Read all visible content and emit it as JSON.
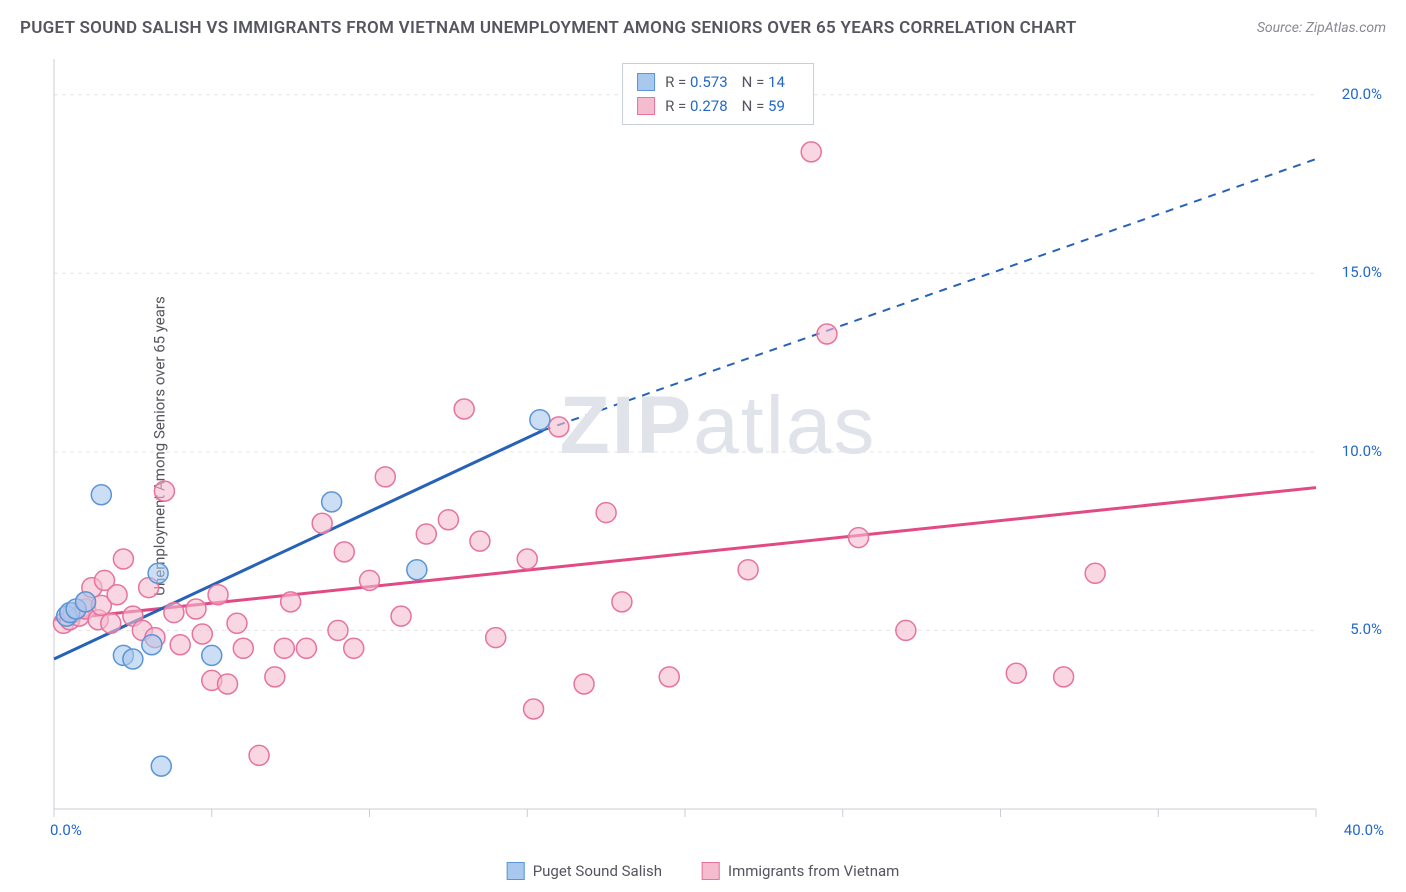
{
  "header": {
    "title": "PUGET SOUND SALISH VS IMMIGRANTS FROM VIETNAM UNEMPLOYMENT AMONG SENIORS OVER 65 YEARS CORRELATION CHART",
    "source": "Source: ZipAtlas.com"
  },
  "chart": {
    "type": "scatter",
    "y_axis_title": "Unemployment Among Seniors over 65 years",
    "watermark": "ZIPatlas",
    "background_color": "#ffffff",
    "grid_color": "#e5e5e5",
    "axis_color": "#c8cdd6",
    "tick_color": "#c8cdd6",
    "label_color": "#2268c9",
    "title_color": "#555560",
    "xlim": [
      0,
      40
    ],
    "ylim": [
      0,
      21
    ],
    "x_ticks": [
      0,
      5,
      10,
      15,
      20,
      25,
      30,
      35,
      40
    ],
    "x_tick_labels": {
      "0": "0.0%",
      "40": "40.0%"
    },
    "y_gridlines": [
      5,
      10,
      15,
      20
    ],
    "y_tick_labels": {
      "5": "5.0%",
      "10": "10.0%",
      "15": "15.0%",
      "20": "20.0%"
    },
    "series": [
      {
        "name": "Puget Sound Salish",
        "fill": "#a8c8ed",
        "stroke": "#5a95d8",
        "line_color": "#2662b8",
        "R": "0.573",
        "N": "14",
        "marker_radius": 10,
        "trend": {
          "x1": 0,
          "y1": 4.2,
          "x2": 15.5,
          "y2": 10.6,
          "dash_x2": 40,
          "dash_y2": 18.2
        },
        "points": [
          [
            0.4,
            5.4
          ],
          [
            0.5,
            5.5
          ],
          [
            0.7,
            5.6
          ],
          [
            1.0,
            5.8
          ],
          [
            1.5,
            8.8
          ],
          [
            2.2,
            4.3
          ],
          [
            2.5,
            4.2
          ],
          [
            3.1,
            4.6
          ],
          [
            3.3,
            6.6
          ],
          [
            5.0,
            4.3
          ],
          [
            8.8,
            8.6
          ],
          [
            11.5,
            6.7
          ],
          [
            15.4,
            10.9
          ],
          [
            3.4,
            1.2
          ]
        ]
      },
      {
        "name": "Immigrants from Vietnam",
        "fill": "#f5bccf",
        "stroke": "#e7739e",
        "line_color": "#e14a82",
        "R": "0.278",
        "N": "59",
        "marker_radius": 10,
        "trend": {
          "x1": 0,
          "y1": 5.3,
          "x2": 40,
          "y2": 9.0
        },
        "points": [
          [
            0.3,
            5.2
          ],
          [
            0.5,
            5.3
          ],
          [
            0.6,
            5.5
          ],
          [
            0.8,
            5.4
          ],
          [
            1.0,
            5.6
          ],
          [
            1.0,
            5.8
          ],
          [
            1.2,
            6.2
          ],
          [
            1.4,
            5.3
          ],
          [
            1.5,
            5.7
          ],
          [
            1.6,
            6.4
          ],
          [
            1.8,
            5.2
          ],
          [
            2.0,
            6.0
          ],
          [
            2.2,
            7.0
          ],
          [
            2.5,
            5.4
          ],
          [
            2.8,
            5.0
          ],
          [
            3.0,
            6.2
          ],
          [
            3.2,
            4.8
          ],
          [
            3.5,
            8.9
          ],
          [
            3.8,
            5.5
          ],
          [
            4.0,
            4.6
          ],
          [
            4.5,
            5.6
          ],
          [
            4.7,
            4.9
          ],
          [
            5.0,
            3.6
          ],
          [
            5.2,
            6.0
          ],
          [
            5.5,
            3.5
          ],
          [
            5.8,
            5.2
          ],
          [
            6.0,
            4.5
          ],
          [
            6.5,
            1.5
          ],
          [
            7.0,
            3.7
          ],
          [
            7.3,
            4.5
          ],
          [
            7.5,
            5.8
          ],
          [
            8.0,
            4.5
          ],
          [
            8.5,
            8.0
          ],
          [
            9.0,
            5.0
          ],
          [
            9.5,
            4.5
          ],
          [
            10.0,
            6.4
          ],
          [
            10.5,
            9.3
          ],
          [
            11.0,
            5.4
          ],
          [
            11.8,
            7.7
          ],
          [
            12.5,
            8.1
          ],
          [
            13.0,
            11.2
          ],
          [
            13.5,
            7.5
          ],
          [
            14.0,
            4.8
          ],
          [
            15.0,
            7.0
          ],
          [
            15.2,
            2.8
          ],
          [
            16.0,
            10.7
          ],
          [
            16.8,
            3.5
          ],
          [
            17.5,
            8.3
          ],
          [
            18.0,
            5.8
          ],
          [
            19.5,
            3.7
          ],
          [
            22.0,
            6.7
          ],
          [
            24.0,
            18.4
          ],
          [
            24.5,
            13.3
          ],
          [
            25.5,
            7.6
          ],
          [
            27.0,
            5.0
          ],
          [
            30.5,
            3.8
          ],
          [
            32.0,
            3.7
          ],
          [
            33.0,
            6.6
          ],
          [
            9.2,
            7.2
          ]
        ]
      }
    ]
  },
  "legend_bottom": [
    {
      "label": "Puget Sound Salish",
      "fill": "#a8c8ed",
      "stroke": "#5a95d8"
    },
    {
      "label": "Immigrants from Vietnam",
      "fill": "#f5bccf",
      "stroke": "#e7739e"
    }
  ]
}
